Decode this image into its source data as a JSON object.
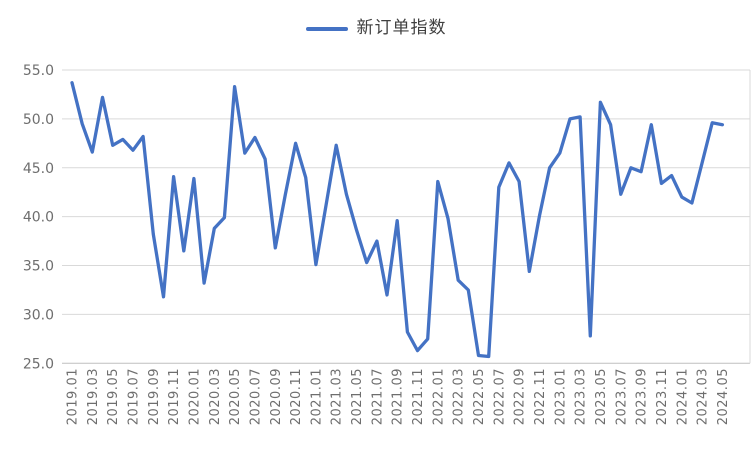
{
  "legend": {
    "label": "新订单指数"
  },
  "colors": {
    "line": "#4472C4",
    "gridline": "#D9D9D9",
    "axis_line": "#BFBFBF",
    "tick_label": "#6E6E6E",
    "legend_text": "#404040",
    "background": "#FFFFFF"
  },
  "chart_data": {
    "type": "line",
    "title": "",
    "legend_position": "top-center",
    "grid": "horizontal",
    "ylim": [
      25.0,
      55.0
    ],
    "ytick_step": 5.0,
    "y_tick_labels": [
      "55.0",
      "50.0",
      "45.0",
      "40.0",
      "35.0",
      "30.0",
      "25.0"
    ],
    "x_tick_label_every": 2,
    "x": [
      "2019.01",
      "2019.02",
      "2019.03",
      "2019.04",
      "2019.05",
      "2019.06",
      "2019.07",
      "2019.08",
      "2019.09",
      "2019.10",
      "2019.11",
      "2019.12",
      "2020.01",
      "2020.02",
      "2020.03",
      "2020.04",
      "2020.05",
      "2020.06",
      "2020.07",
      "2020.08",
      "2020.09",
      "2020.10",
      "2020.11",
      "2020.12",
      "2021.01",
      "2021.02",
      "2021.03",
      "2021.04",
      "2021.05",
      "2021.06",
      "2021.07",
      "2021.08",
      "2021.09",
      "2021.10",
      "2021.11",
      "2021.12",
      "2022.01",
      "2022.02",
      "2022.03",
      "2022.04",
      "2022.05",
      "2022.06",
      "2022.07",
      "2022.08",
      "2022.09",
      "2022.10",
      "2022.11",
      "2022.12",
      "2023.01",
      "2023.02",
      "2023.03",
      "2023.04",
      "2023.05",
      "2023.06",
      "2023.07",
      "2023.08",
      "2023.09",
      "2023.10",
      "2023.11",
      "2023.12",
      "2024.01",
      "2024.02",
      "2024.03",
      "2024.04",
      "2024.05"
    ],
    "series": [
      {
        "name": "新订单指数",
        "values": [
          53.7,
          49.5,
          46.6,
          52.2,
          47.3,
          47.9,
          46.8,
          48.2,
          38.2,
          31.8,
          44.1,
          36.5,
          43.9,
          33.2,
          38.8,
          39.9,
          53.3,
          46.5,
          48.1,
          45.9,
          36.8,
          42.3,
          47.5,
          44.0,
          35.1,
          41.2,
          47.3,
          42.3,
          38.6,
          35.3,
          37.5,
          32.0,
          39.6,
          28.2,
          26.3,
          27.5,
          43.6,
          39.8,
          33.5,
          32.5,
          25.8,
          25.7,
          43.0,
          45.5,
          43.6,
          34.4,
          40.1,
          45.0,
          46.5,
          50.0,
          50.2,
          27.8,
          51.7,
          49.4,
          42.3,
          45.0,
          44.6,
          49.4,
          43.4,
          44.2,
          42.0,
          41.4,
          45.5,
          49.6,
          49.4
        ]
      }
    ]
  }
}
